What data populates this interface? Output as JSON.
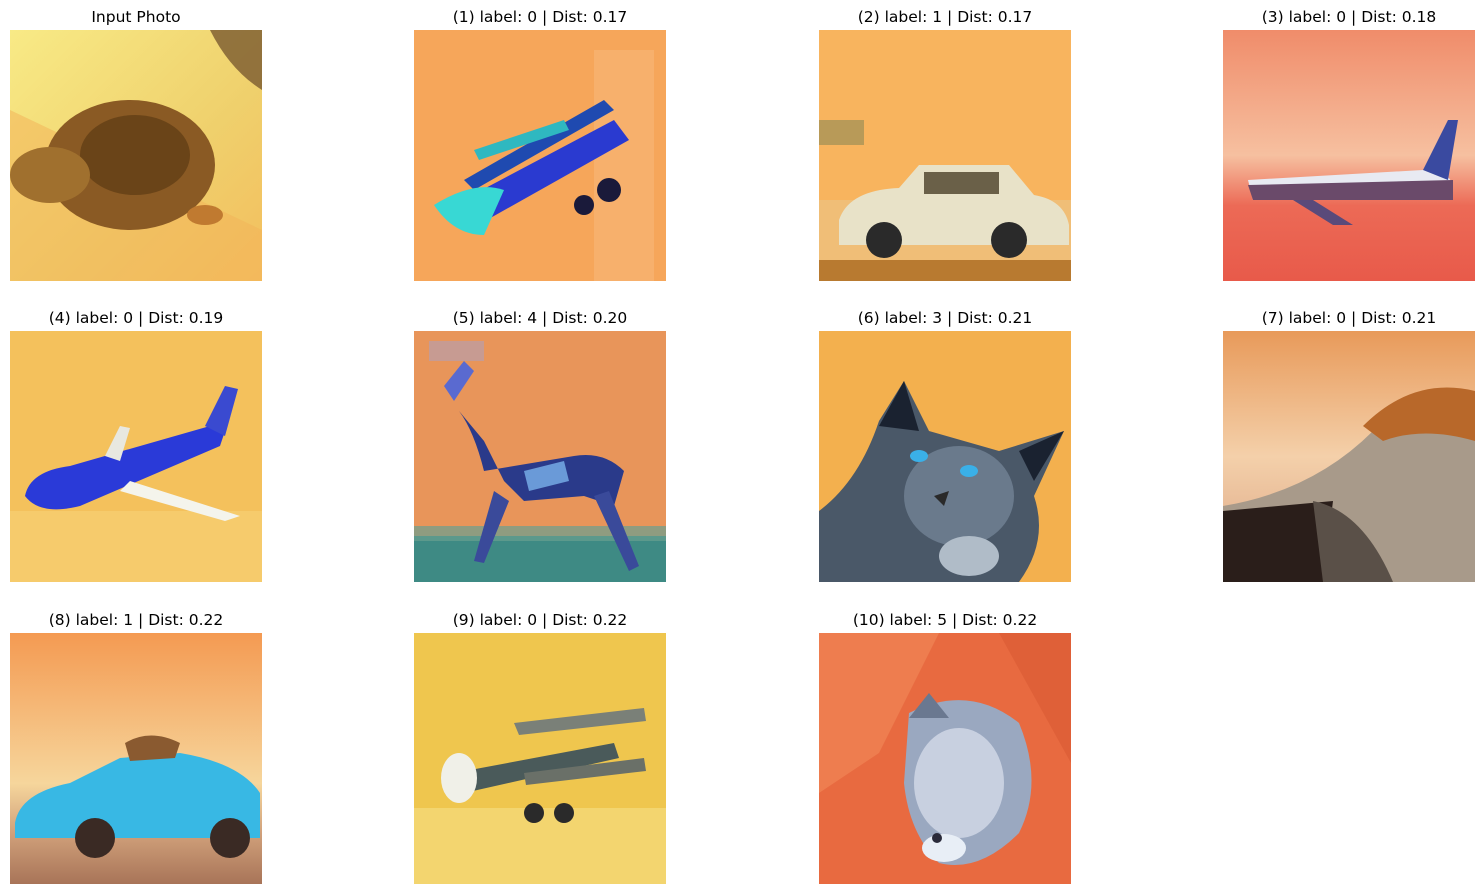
{
  "figure": {
    "panels": [
      {
        "title": "Input Photo",
        "icon": "snail-photo",
        "bg": "#f2dc78"
      },
      {
        "title": "(1) label: 0 | Dist: 0.17",
        "icon": "biplane-photo",
        "bg": "#f6a85a"
      },
      {
        "title": "(2) label: 1 | Dist: 0.17",
        "icon": "car-photo",
        "bg": "#f8b45e"
      },
      {
        "title": "(3) label: 0 | Dist: 0.18",
        "icon": "airliner-photo",
        "bg": "#ec7a62"
      },
      {
        "title": "(4) label: 0 | Dist: 0.19",
        "icon": "jet-photo",
        "bg": "#f4c15c"
      },
      {
        "title": "(5) label: 4 | Dist: 0.20",
        "icon": "deer-photo",
        "bg": "#e8955a"
      },
      {
        "title": "(6) label: 3 | Dist: 0.21",
        "icon": "cat-photo",
        "bg": "#f3b04e"
      },
      {
        "title": "(7) label: 0 | Dist: 0.21",
        "icon": "aircraft-closeup-photo",
        "bg": "#f0ad70"
      },
      {
        "title": "(8) label: 1 | Dist: 0.22",
        "icon": "sports-car-photo",
        "bg": "#f1a05a"
      },
      {
        "title": "(9) label: 0 | Dist: 0.22",
        "icon": "model-biplane-photo",
        "bg": "#efc64e"
      },
      {
        "title": "(10) label: 5 | Dist: 0.22",
        "icon": "dog-photo",
        "bg": "#e86a40"
      }
    ]
  }
}
